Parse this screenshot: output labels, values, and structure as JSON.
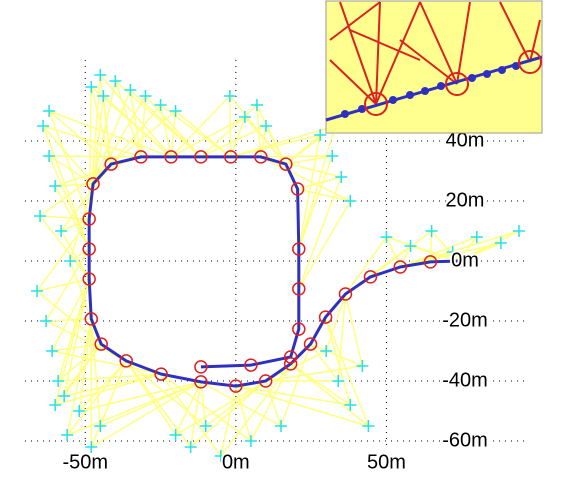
{
  "chart_data": {
    "type": "line",
    "xlim": [
      -70,
      96
    ],
    "ylim": [
      -68,
      67
    ],
    "xticks": [
      {
        "value": -50,
        "label": "-50m"
      },
      {
        "value": 0,
        "label": "0m"
      },
      {
        "value": 50,
        "label": "50m"
      }
    ],
    "yticks": [
      {
        "value": 40,
        "label": "40m"
      },
      {
        "value": 20,
        "label": "20m"
      },
      {
        "value": 0,
        "label": "0m"
      },
      {
        "value": -20,
        "label": "-20m"
      },
      {
        "value": -40,
        "label": "-40m"
      },
      {
        "value": -60,
        "label": "-60m"
      }
    ],
    "grid": true,
    "ray_color": "#ffff80",
    "series": [
      {
        "type": "line",
        "color": "#3030c0",
        "marker_color": "#dd2020",
        "x": [
          -11.6,
          5.0,
          18.2,
          20.9,
          20.9,
          20.9,
          20.5,
          16.6,
          8.3,
          -1.7,
          -11.6,
          -21.5,
          -31.5,
          -41.4,
          -47.4,
          -48.7,
          -48.7,
          -48.7,
          -48.0,
          -44.7,
          -36.4,
          -24.8,
          -11.6,
          0,
          9.9,
          18.2,
          24.8,
          29.8,
          36.4,
          44.7,
          54.6,
          64.6,
          73.8
        ],
        "values": [
          -35.3,
          -34.7,
          -32.0,
          -22.7,
          -9.3,
          4.0,
          24.0,
          32.3,
          34.7,
          34.7,
          34.7,
          34.7,
          34.7,
          32.3,
          25.7,
          14.0,
          4.0,
          -6.0,
          -19.3,
          -27.7,
          -33.3,
          -37.7,
          -40.3,
          -41.7,
          -40.0,
          -34.3,
          -27.7,
          -18.7,
          -11.0,
          -5.3,
          -2.0,
          -0.3,
          0
        ]
      },
      {
        "type": "scatter",
        "color": "#22e0f0",
        "x": [
          -64,
          -62,
          -60,
          -58,
          -55,
          -66,
          -63,
          -61,
          -59,
          -65,
          -62,
          -57,
          -48,
          -44,
          -40,
          -35,
          -30,
          -25,
          -20,
          -45,
          -2,
          3,
          7,
          10,
          28,
          32,
          35,
          38,
          33,
          50,
          58,
          65,
          72,
          80,
          88,
          94,
          30,
          34,
          38,
          42,
          44,
          -20,
          -15,
          -10,
          -5,
          -52,
          -56,
          -48,
          -60,
          -45,
          5,
          15
        ],
        "values": [
          45,
          35,
          25,
          10,
          0,
          -10,
          -20,
          -30,
          -40,
          15,
          50,
          -45,
          58,
          55,
          60,
          57,
          55,
          52,
          50,
          -55,
          55,
          48,
          52,
          45,
          42,
          35,
          28,
          20,
          45,
          8,
          5,
          10,
          3,
          8,
          6,
          10,
          -30,
          -40,
          -48,
          -35,
          -55,
          -58,
          -62,
          -55,
          -65,
          -50,
          -58,
          -62,
          -48,
          62,
          -60,
          -55
        ]
      }
    ]
  }
}
